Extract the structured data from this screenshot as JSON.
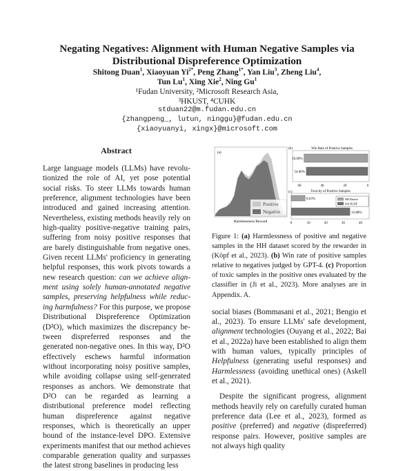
{
  "paper": {
    "title_line1": "Negating Negatives: Alignment with Human Negative Samples via",
    "title_line2": "Distributional Dispreference Optimization",
    "authors_line1": [
      {
        "name": "Shitong Duan",
        "sup": "1"
      },
      {
        "name": "Xiaoyuan Yi",
        "sup": "2*"
      },
      {
        "name": "Peng Zhang",
        "sup": "1*"
      },
      {
        "name": "Yan Liu",
        "sup": "3"
      },
      {
        "name": "Zheng Liu",
        "sup": "4"
      }
    ],
    "authors_line2": [
      {
        "name": "Tun Lu",
        "sup": "1"
      },
      {
        "name": "Xing Xie",
        "sup": "2"
      },
      {
        "name": "Ning Gu",
        "sup": "1"
      }
    ],
    "affiliations_line1": "¹Fudan University, ²Microsoft Research Asia,",
    "affiliations_line2": "³HKUST, ⁴CUHK",
    "emails": [
      "stduan22@m.fudan.edu.cn",
      "{zhangpeng_, lutun, ninggu}@fudan.edu.cn",
      "{xiaoyuanyi, xingx}@microsoft.com"
    ]
  },
  "abstract": {
    "heading": "Abstract",
    "text_a": "Large language models (LLMs) have revolu­tionized the role of AI, yet pose potential social risks. To steer LLMs towards human prefer­ence, alignment technologies have been intro­duced and gained increasing attention. Nev­ertheless, existing methods heavily rely on high-quality positive-negative training pairs, suffering from noisy positive responses that are barely distinguishable from negative ones. Given recent LLMs' proficiency in generating helpful responses, this work pivots towards a new research question: ",
    "text_italic": "can we achieve align­ment using solely human-annotated negative samples, preserving helpfulness while reduc­ing harmfulness?",
    "text_b": " For this purpose, we pro­pose Distributional Dispreference Optimization (D²O), which maximizes the discrepancy be­tween dispreferred responses and the generated non-negative ones. In this way, D²O effectively eschews harmful information without incorpo­rating noisy positive samples, while avoiding collapse using self-generated responses as an­chors. We demonstrate that D²O can be re­garded as learning a distributional preference model reflecting human dispreference against negative responses, which is theoretically an up­per bound of the instance-level DPO. Extensive experiments manifest that our method achieves comparable generation quality and surpasses the latest strong baselines in producing less"
  },
  "figure": {
    "caption_label": "Figure 1:",
    "caption_a_tag": "(a)",
    "caption_a": " Harmlessness of positive and negative sam­ples in the HH dataset scored by the rewarder in (Köpf et al., 2023). ",
    "caption_b_tag": "(b)",
    "caption_b": " Win rate of positive samples relative to negatives judged by GPT-4. ",
    "caption_c_tag": "(c)",
    "caption_c": " Proportion of toxic samples in the positive ones evaluated by the classifier in (Ji et al., 2023). More analyses are in Appendix. A."
  },
  "chart_data": [
    {
      "type": "area",
      "panel": "(a)",
      "xlabel": "Harmlessness Reward",
      "ylabel": "",
      "series": [
        {
          "name": "Positive",
          "color": "#c8c8c8",
          "values": [
            0.02,
            0.08,
            0.12,
            0.16,
            0.22,
            0.3,
            0.55,
            0.7,
            0.66,
            0.62,
            0.7,
            0.8,
            0.85,
            0.95,
            1.0,
            0.9,
            0.6,
            0.3,
            0.12,
            0.04
          ]
        },
        {
          "name": "Negative",
          "color": "#707070",
          "values": [
            0.03,
            0.1,
            0.13,
            0.15,
            0.2,
            0.32,
            0.6,
            0.72,
            0.62,
            0.58,
            0.66,
            0.78,
            0.82,
            0.88,
            0.84,
            0.6,
            0.3,
            0.12,
            0.04,
            0.01
          ]
        }
      ],
      "legend": "bottom-right",
      "grid": false
    },
    {
      "type": "bar",
      "panel": "(b)",
      "title": "Win Rate of Positive Samples",
      "orientation": "horizontal",
      "x_reversed": true,
      "xlim": [
        60,
        0
      ],
      "xticks": [
        "60",
        "40",
        "20",
        "0"
      ],
      "values": [
        56.0,
        54.0
      ],
      "labels": [
        "56.00%",
        "54.00%"
      ],
      "series_colors": [
        "#a0a0a0",
        "#707070"
      ]
    },
    {
      "type": "bar",
      "panel": "(c)",
      "title": "Toxicity of Positive Samples",
      "orientation": "horizontal",
      "xlim": [
        0,
        45
      ],
      "xticks": [
        "0",
        "10",
        "20",
        "30",
        "40"
      ],
      "series": [
        {
          "name": "HH Dataset",
          "value": 8.03,
          "label": "8.03%",
          "color": "#a0a0a0"
        },
        {
          "name": "Self-RLHF",
          "value": 33.88,
          "label": "33.88%",
          "color": "#707070"
        }
      ],
      "legend": "top-right"
    }
  ],
  "body": {
    "para1": "social biases (Bommasani et al., 2021; Bengio et al., 2023). To ensure LLMs' safe development, ",
    "para1_i1": "align­ment",
    "para1_b": " technologies (Ouyang et al., 2022; Bai et al., 2022a) have been established to align them with human values, typically principles of ",
    "para1_i2": "Helpfulness",
    "para1_c": " (generating useful responses) and ",
    "para1_i3": "Harmlessness",
    "para1_d": " (avoiding unethical ones) (Askell et al., 2021).",
    "para2": "Despite the significant progress, alignment meth­ods heavily rely on carefully curated human prefer­ence data (Lee et al., 2023), formed as ",
    "para2_i1": "positive",
    "para2_b": " (pre­ferred) and ",
    "para2_i2": "negative",
    "para2_c": " (dispreferred) response pairs. However, positive samples are not always high quality"
  }
}
